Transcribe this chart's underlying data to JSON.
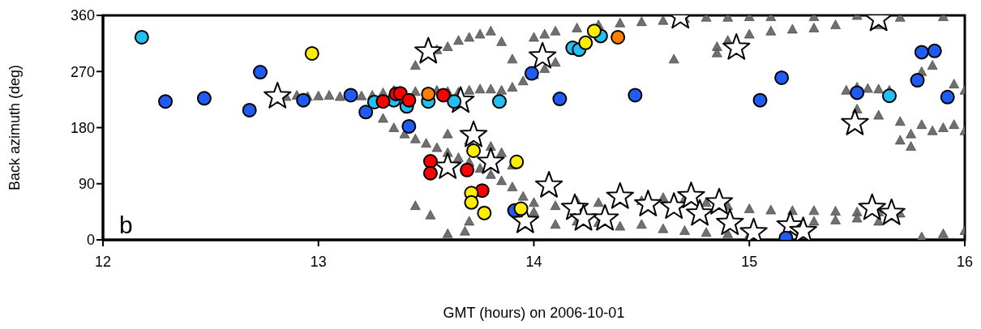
{
  "chart_data": {
    "type": "scatter",
    "xlabel": "GMT (hours) on 2006-10-01",
    "ylabel": "Back azimuth (deg)",
    "annotations": [
      "b"
    ],
    "xlim": [
      12,
      16
    ],
    "xticks": [
      12,
      13,
      14,
      15,
      16
    ],
    "ylim": [
      0,
      360
    ],
    "yticks": [
      0,
      90,
      180,
      270,
      360
    ],
    "grid": false,
    "legend": false,
    "series": [
      {
        "color": "#707070",
        "marker": "triangle",
        "x": [
          12.85,
          12.9,
          12.95,
          13.0,
          13.05,
          13.1,
          13.2,
          13.25,
          13.3,
          13.35,
          13.45,
          13.55,
          13.6,
          13.65,
          13.7,
          13.75,
          13.8,
          13.85,
          13.9,
          13.95,
          14.0,
          14.05,
          14.1,
          13.3,
          13.35,
          13.4,
          13.45,
          13.5,
          13.55,
          13.6,
          13.65,
          13.7,
          13.75,
          13.8,
          13.85,
          13.9,
          13.95,
          14.0,
          13.6,
          13.7,
          13.8,
          13.85,
          13.9,
          14.0,
          14.1,
          14.2,
          14.3,
          14.5,
          14.6,
          14.7,
          14.8,
          14.9,
          15.0,
          15.1,
          15.2,
          15.3,
          15.4,
          15.5,
          15.6,
          15.7,
          14.1,
          14.2,
          14.3,
          14.4,
          14.5,
          14.6,
          14.7,
          14.8,
          14.9,
          15.0,
          15.3,
          15.4,
          15.5,
          15.6,
          15.8,
          15.9,
          16.0,
          13.6,
          13.45,
          13.7,
          13.52,
          13.68,
          13.45,
          13.55,
          13.6,
          13.65,
          13.7,
          13.75,
          13.8,
          13.85,
          13.9,
          14.0,
          14.05,
          14.1,
          14.2,
          14.3,
          14.4,
          14.5,
          14.6,
          14.7,
          14.8,
          14.9,
          15.0,
          15.1,
          15.3,
          15.5,
          15.7,
          15.9,
          14.85,
          14.9,
          15.0,
          15.1,
          15.2,
          15.3,
          15.4,
          14.65,
          14.85,
          15.6,
          15.45,
          15.5,
          15.55,
          15.6,
          15.65,
          15.5,
          15.6,
          15.7,
          15.8,
          15.9,
          16.0,
          15.7,
          15.75,
          15.85,
          15.95,
          15.8,
          15.85,
          15.95,
          16.0,
          15.75
        ],
        "values": [
          230,
          232,
          230,
          231,
          232,
          230,
          231,
          232,
          236,
          240,
          238,
          240,
          238,
          237,
          240,
          242,
          242,
          240,
          245,
          255,
          265,
          275,
          285,
          195,
          180,
          170,
          162,
          155,
          148,
          140,
          132,
          125,
          115,
          105,
          95,
          85,
          70,
          60,
          170,
          160,
          150,
          140,
          120,
          45,
          55,
          62,
          60,
          63,
          68,
          66,
          60,
          55,
          50,
          48,
          47,
          47,
          46,
          45,
          45,
          43,
          25,
          30,
          28,
          22,
          25,
          18,
          15,
          12,
          10,
          8,
          30,
          32,
          35,
          30,
          5,
          10,
          15,
          10,
          55,
          30,
          40,
          14,
          280,
          305,
          310,
          320,
          325,
          330,
          335,
          318,
          290,
          325,
          330,
          335,
          340,
          345,
          348,
          350,
          352,
          355,
          357,
          357,
          358,
          358,
          358,
          360,
          357,
          358,
          310,
          320,
          330,
          335,
          338,
          340,
          345,
          290,
          300,
          345,
          240,
          245,
          243,
          242,
          240,
          210,
          200,
          190,
          185,
          180,
          175,
          160,
          170,
          175,
          185,
          270,
          280,
          250,
          240,
          150
        ]
      },
      {
        "color": "#ffffff",
        "marker": "star",
        "x": [
          12.81,
          13.51,
          13.66,
          13.72,
          13.8,
          13.6,
          14.04,
          14.07,
          14.94,
          14.68,
          15.6,
          15.49,
          14.4,
          14.33,
          14.53,
          14.65,
          14.73,
          14.77,
          14.86,
          14.91,
          15.02,
          15.19,
          15.25,
          15.57,
          15.66,
          13.96,
          14.19,
          14.23
        ],
        "values": [
          230,
          302,
          223,
          168,
          125,
          117,
          294,
          87,
          308,
          358,
          354,
          187,
          69,
          34,
          57,
          53,
          70,
          42,
          60,
          27,
          12,
          23,
          14,
          51,
          43,
          30,
          51,
          34
        ]
      },
      {
        "color": "#1f5cf5",
        "marker": "circle",
        "x": [
          12.29,
          12.47,
          12.68,
          12.73,
          12.93,
          13.15,
          13.22,
          13.42,
          13.99,
          14.12,
          14.47,
          15.8,
          15.86,
          15.15,
          15.05,
          15.5,
          15.78,
          15.92,
          15.17,
          13.91
        ],
        "values": [
          222,
          227,
          208,
          269,
          224,
          232,
          205,
          182,
          267,
          226,
          232,
          301,
          303,
          260,
          224,
          236,
          256,
          229,
          3,
          47
        ]
      },
      {
        "color": "#22c0f0",
        "marker": "circle",
        "x": [
          12.18,
          13.26,
          13.35,
          13.41,
          13.51,
          13.63,
          13.84,
          14.18,
          14.21,
          14.31,
          15.65
        ],
        "values": [
          325,
          221,
          224,
          214,
          222,
          222,
          222,
          308,
          305,
          327,
          231
        ]
      },
      {
        "color": "#ff0000",
        "marker": "circle",
        "x": [
          13.3,
          13.36,
          13.38,
          13.42,
          13.58,
          13.52,
          13.52,
          13.69,
          13.76
        ],
        "values": [
          222,
          234,
          235,
          224,
          232,
          126,
          107,
          112,
          79
        ]
      },
      {
        "color": "#ff8000",
        "marker": "circle",
        "x": [
          13.51,
          14.39
        ],
        "values": [
          234,
          325
        ]
      },
      {
        "color": "#ffee00",
        "marker": "circle",
        "x": [
          12.97,
          14.24,
          14.28,
          13.72,
          13.92,
          13.71,
          13.71,
          13.77,
          13.94
        ],
        "values": [
          299,
          316,
          335,
          143,
          125,
          75,
          60,
          43,
          50
        ]
      }
    ]
  }
}
